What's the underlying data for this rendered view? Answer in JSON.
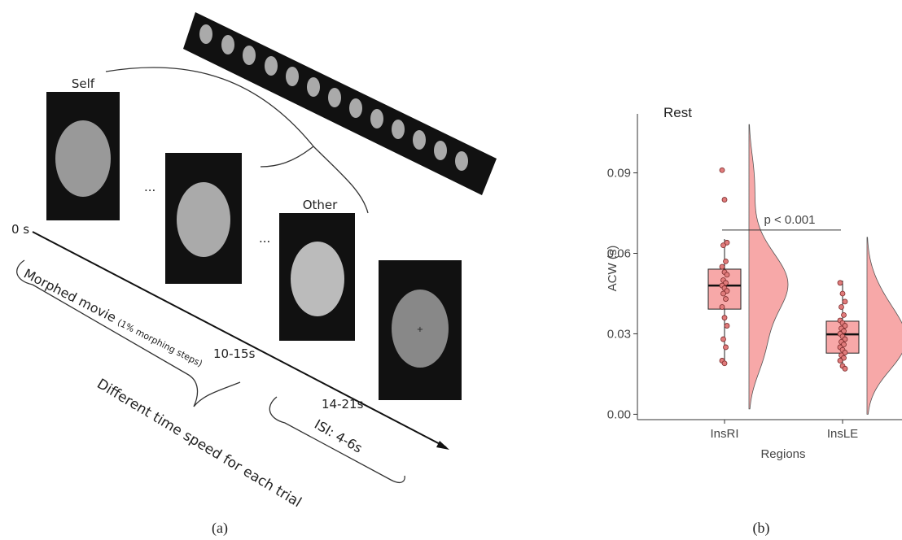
{
  "panel_a": {
    "self": "Self",
    "other": "Other",
    "ellipsis_1": "...",
    "ellipsis_2": "...",
    "time_0": "0 s",
    "time_1": "10-15s",
    "time_2": "14-21s",
    "morphed": "Morphed movie",
    "morphed_note": "(1% morphing steps)",
    "speed": "Different time speed for each trial",
    "isi": "ISI: 4-6s"
  },
  "captions": [
    "(a)",
    "(b)"
  ],
  "chart_data": {
    "type": "raincloud",
    "title": "Rest",
    "xlabel": "Regions",
    "ylabel": "ACW (s)",
    "categories": [
      "InsRI",
      "InsLE"
    ],
    "ylim": [
      -0.002,
      0.112
    ],
    "yticks": [
      {
        "value": 0,
        "label": "0.00"
      },
      {
        "value": 0.03,
        "label": "0.03"
      },
      {
        "value": 0.06,
        "label": "0.06"
      },
      {
        "value": 0.09,
        "label": "0.09"
      }
    ],
    "color": "#f7a8a8",
    "point_color": "#e07b7b",
    "annotation": {
      "text": "p < 0.001",
      "value": 0.0687
    },
    "boxes": [
      {
        "min": 0.0195,
        "q1": 0.0392,
        "median": 0.048,
        "q3": 0.0541,
        "max": 0.0653
      },
      {
        "min": 0.017,
        "q1": 0.0228,
        "median": 0.0298,
        "q3": 0.0347,
        "max": 0.0498
      }
    ],
    "points": [
      [
        0.091,
        0.08,
        0.064,
        0.063,
        0.057,
        0.055,
        0.053,
        0.052,
        0.05,
        0.049,
        0.048,
        0.047,
        0.046,
        0.045,
        0.043,
        0.04,
        0.036,
        0.033,
        0.028,
        0.025,
        0.02,
        0.019
      ],
      [
        0.049,
        0.045,
        0.042,
        0.04,
        0.037,
        0.035,
        0.034,
        0.033,
        0.032,
        0.031,
        0.03,
        0.029,
        0.028,
        0.027,
        0.026,
        0.025,
        0.024,
        0.023,
        0.022,
        0.021,
        0.02,
        0.018,
        0.017
      ]
    ]
  }
}
